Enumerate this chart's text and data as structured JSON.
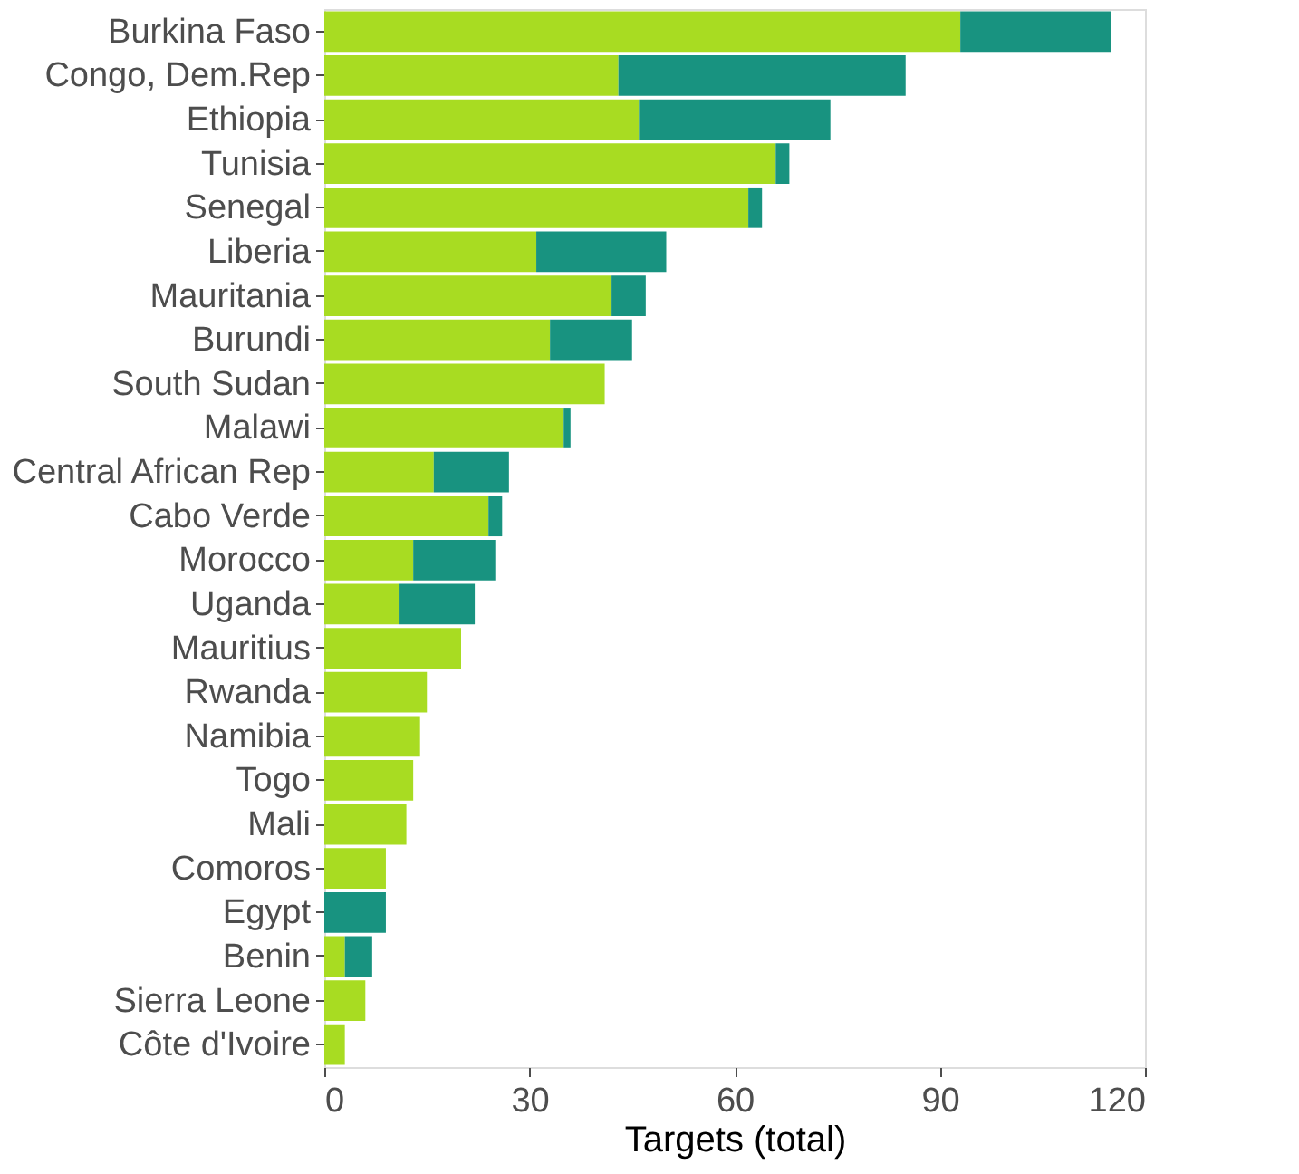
{
  "chart_data": {
    "type": "bar",
    "orientation": "horizontal",
    "stacked": true,
    "xlabel": "Targets (total)",
    "categories": [
      "Burkina Faso",
      "Congo, Dem.Rep",
      "Ethiopia",
      "Tunisia",
      "Senegal",
      "Liberia",
      "Mauritania",
      "Burundi",
      "South Sudan",
      "Malawi",
      "Central African Rep",
      "Cabo Verde",
      "Morocco",
      "Uganda",
      "Mauritius",
      "Rwanda",
      "Namibia",
      "Togo",
      "Mali",
      "Comoros",
      "Egypt",
      "Benin",
      "Sierra Leone",
      "Côte d'Ivoire"
    ],
    "series": [
      {
        "color": "#a8dc22",
        "values": [
          93,
          43,
          46,
          66,
          62,
          31,
          42,
          33,
          41,
          35,
          16,
          24,
          13,
          11,
          20,
          15,
          14,
          13,
          12,
          9,
          0,
          3,
          6,
          3
        ]
      },
      {
        "color": "#189380",
        "values": [
          22,
          42,
          28,
          2,
          2,
          19,
          5,
          12,
          0,
          1,
          11,
          2,
          12,
          11,
          0,
          0,
          0,
          0,
          0,
          0,
          9,
          4,
          0,
          0
        ]
      }
    ],
    "xlim": [
      0,
      120
    ],
    "xticks": [
      0,
      30,
      60,
      90,
      120
    ],
    "grid": false,
    "legend": false
  }
}
